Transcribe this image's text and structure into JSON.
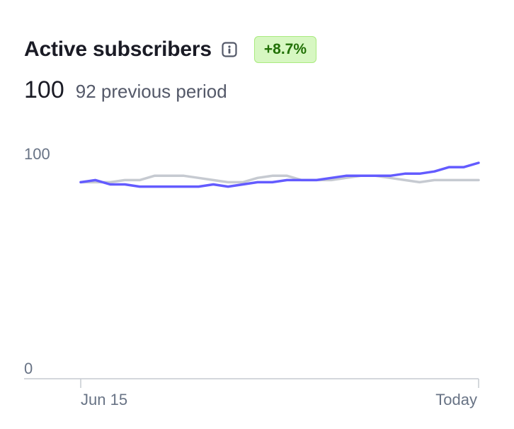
{
  "card": {
    "title": "Active subscribers",
    "info_icon": "info-icon",
    "change_badge": "+8.7%",
    "current_value": "100",
    "previous_label": "92 previous period"
  },
  "colors": {
    "current_series": "#635bff",
    "previous_series": "#c6cad1",
    "badge_bg": "#d7f7c2",
    "badge_text": "#217005",
    "badge_border": "#a9ea7f",
    "axis_text": "#687385",
    "axis_line": "#c6cad1"
  },
  "chart_data": {
    "type": "line",
    "title": "",
    "xlabel": "",
    "ylabel": "",
    "ylim": [
      0,
      100
    ],
    "y_ticks": [
      "0",
      "100"
    ],
    "x_tick_labels": [
      "Jun 15",
      "Today"
    ],
    "grid": false,
    "legend": "none",
    "series": [
      {
        "role": "previous period",
        "values": [
          91,
          91,
          91,
          92,
          92,
          94,
          94,
          94,
          93,
          92,
          91,
          91,
          93,
          94,
          94,
          92,
          92,
          92,
          93,
          94,
          94,
          93,
          92,
          91,
          92,
          92,
          92,
          92
        ]
      },
      {
        "role": "current period",
        "values": [
          91,
          92,
          90,
          90,
          89,
          89,
          89,
          89,
          89,
          90,
          89,
          90,
          91,
          91,
          92,
          92,
          92,
          93,
          94,
          94,
          94,
          94,
          95,
          95,
          96,
          98,
          98,
          100
        ]
      }
    ]
  }
}
